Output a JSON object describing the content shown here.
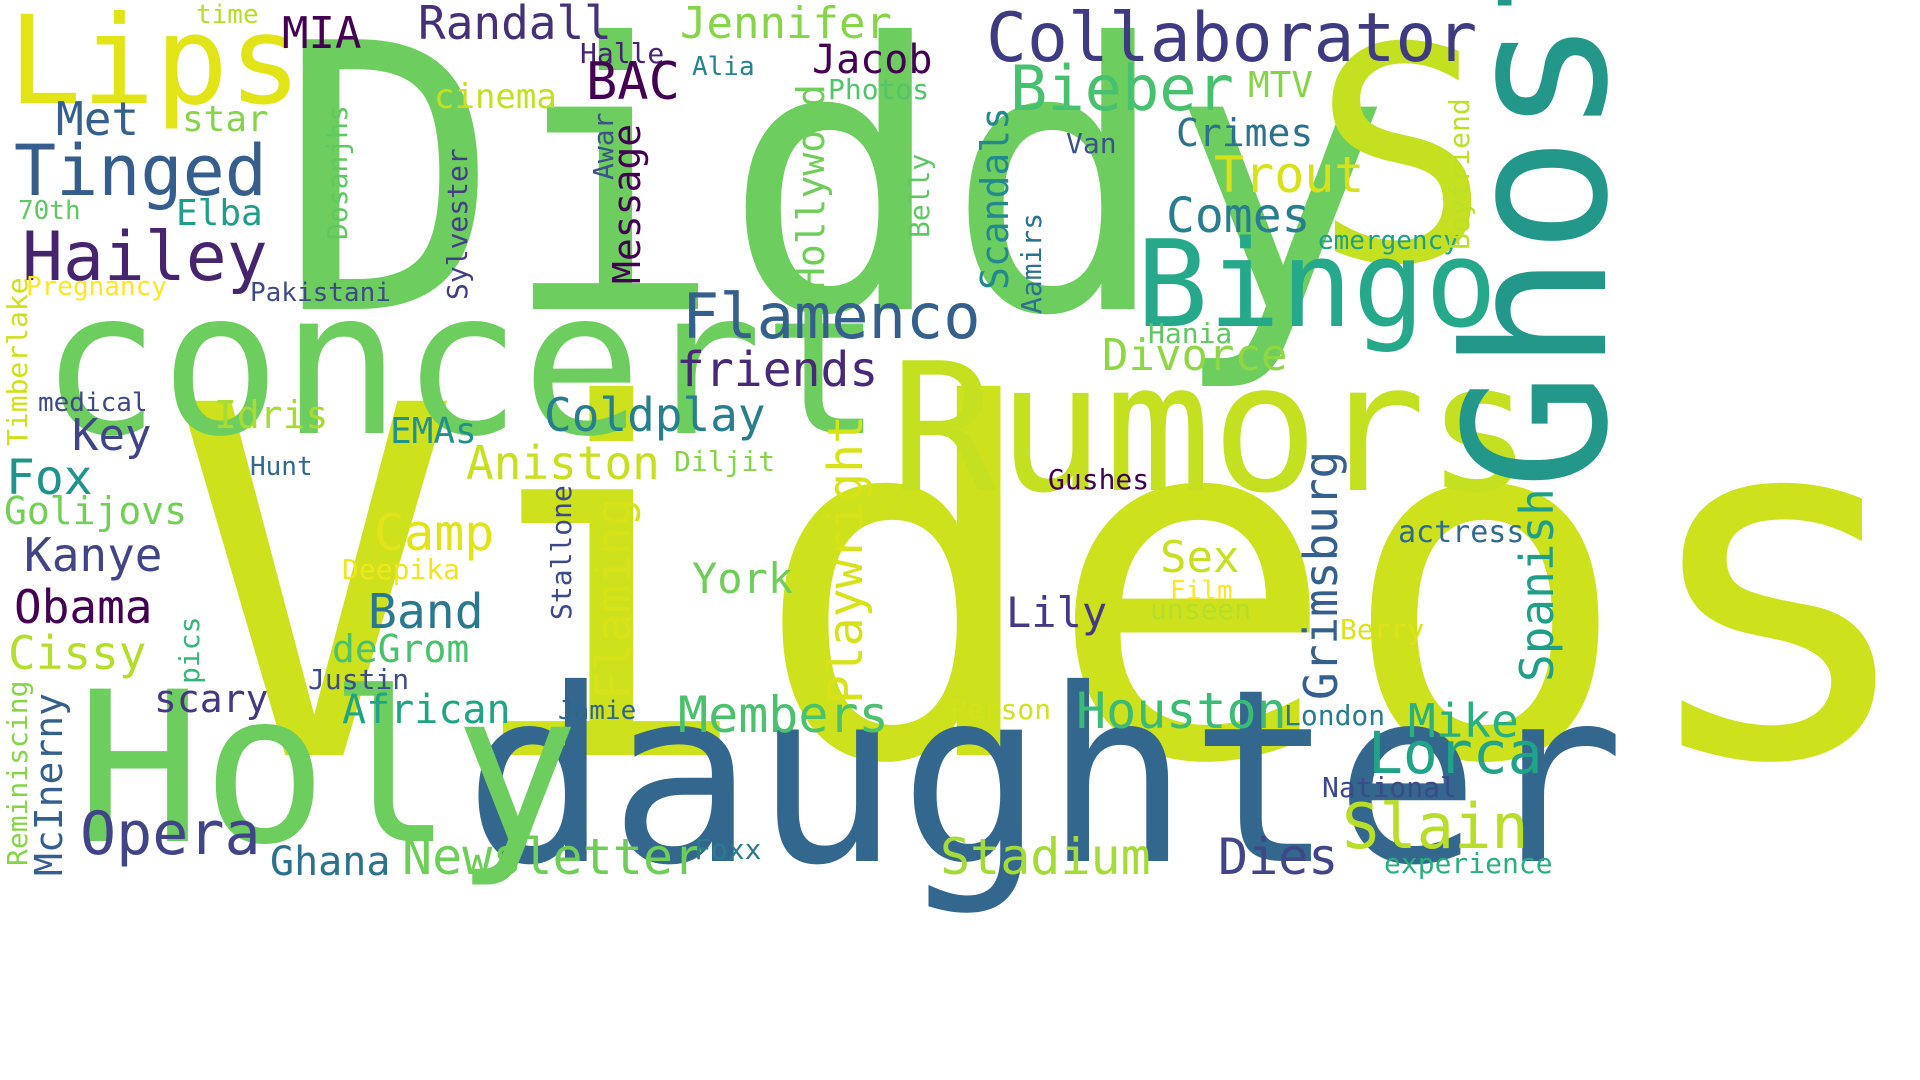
{
  "cloud": {
    "words": [
      {
        "text": "Diddy",
        "color": "#6ecd5f"
      },
      {
        "text": "Videos",
        "color": "#cde11d"
      },
      {
        "text": "daughter",
        "color": "#33678d"
      },
      {
        "text": "concert",
        "color": "#6ecd5f"
      },
      {
        "text": "Holy",
        "color": "#6ecd5f"
      },
      {
        "text": "Rumors",
        "color": "#c4e021"
      },
      {
        "text": "S",
        "color": "#c4e021"
      },
      {
        "text": "Ghost",
        "color": "#24978b"
      },
      {
        "text": "Bingo",
        "color": "#26a98a"
      },
      {
        "text": "Lips",
        "color": "#e2e418"
      },
      {
        "text": "Collaborator",
        "color": "#3f3b82"
      },
      {
        "text": "Tinged",
        "color": "#355e8d"
      },
      {
        "text": "Hailey",
        "color": "#46246e"
      },
      {
        "text": "Flamenco",
        "color": "#355f8d"
      },
      {
        "text": "Bieber",
        "color": "#47c06f"
      },
      {
        "text": "Randall",
        "color": "#46307a"
      },
      {
        "text": "Jennifer",
        "color": "#86d549"
      },
      {
        "text": "MIA",
        "color": "#440154"
      },
      {
        "text": "Met",
        "color": "#355f8d"
      },
      {
        "text": "star",
        "color": "#86d549"
      },
      {
        "text": "time",
        "color": "#b5de2b"
      },
      {
        "text": "Halle",
        "color": "#482173"
      },
      {
        "text": "Alia",
        "color": "#26828e"
      },
      {
        "text": "Jacob",
        "color": "#440154"
      },
      {
        "text": "BAC",
        "color": "#440154"
      },
      {
        "text": "cinema",
        "color": "#c6e020"
      },
      {
        "text": "Photos",
        "color": "#51c56a"
      },
      {
        "text": "MTV",
        "color": "#86d549"
      },
      {
        "text": "Van",
        "color": "#3b528b"
      },
      {
        "text": "Crimes",
        "color": "#2c728e"
      },
      {
        "text": "Trout",
        "color": "#d8e219"
      },
      {
        "text": "Comes",
        "color": "#287d8e"
      },
      {
        "text": "emergency",
        "color": "#1fa088"
      },
      {
        "text": "Elba",
        "color": "#1f9e89"
      },
      {
        "text": "70th",
        "color": "#5ec962"
      },
      {
        "text": "Pregnancy",
        "color": "#fde725"
      },
      {
        "text": "Pakistani",
        "color": "#3e4989"
      },
      {
        "text": "friends",
        "color": "#482878"
      },
      {
        "text": "Divorce",
        "color": "#8fd744"
      },
      {
        "text": "Hania",
        "color": "#5ec962"
      },
      {
        "text": "Coldplay",
        "color": "#277f8e"
      },
      {
        "text": "Idris",
        "color": "#a8db34"
      },
      {
        "text": "EMAs",
        "color": "#21918c"
      },
      {
        "text": "Key",
        "color": "#414487"
      },
      {
        "text": "medical",
        "color": "#3e4989"
      },
      {
        "text": "Hunt",
        "color": "#31688e"
      },
      {
        "text": "Fox",
        "color": "#1f948c"
      },
      {
        "text": "Golijovs",
        "color": "#73d056"
      },
      {
        "text": "Kanye",
        "color": "#414487"
      },
      {
        "text": "Obama",
        "color": "#440154"
      },
      {
        "text": "Cissy",
        "color": "#b5de2b"
      },
      {
        "text": "Aniston",
        "color": "#c8e020"
      },
      {
        "text": "Diljit",
        "color": "#86d549"
      },
      {
        "text": "Gushes",
        "color": "#440154"
      },
      {
        "text": "Camp",
        "color": "#e2e418"
      },
      {
        "text": "Deepika",
        "color": "#f1e51d"
      },
      {
        "text": "actress",
        "color": "#306a8e"
      },
      {
        "text": "Sex",
        "color": "#c8e020"
      },
      {
        "text": "Film",
        "color": "#fde725"
      },
      {
        "text": "York",
        "color": "#6ece58"
      },
      {
        "text": "Band",
        "color": "#2a788e"
      },
      {
        "text": "Lily",
        "color": "#443a83"
      },
      {
        "text": "unseen",
        "color": "#b5de2b"
      },
      {
        "text": "Berry",
        "color": "#dde318"
      },
      {
        "text": "deGrom",
        "color": "#4ac16d"
      },
      {
        "text": "Justin",
        "color": "#3e4c8a"
      },
      {
        "text": "scary",
        "color": "#453781"
      },
      {
        "text": "African",
        "color": "#20a486"
      },
      {
        "text": "Jamie",
        "color": "#32658e"
      },
      {
        "text": "Person",
        "color": "#d2e21b"
      },
      {
        "text": "Houston",
        "color": "#3bbb75"
      },
      {
        "text": "London",
        "color": "#287c8e"
      },
      {
        "text": "Mike",
        "color": "#2ab07f"
      },
      {
        "text": "Lorca",
        "color": "#20a386"
      },
      {
        "text": "Members",
        "color": "#4ac16d"
      },
      {
        "text": "National",
        "color": "#3e4989"
      },
      {
        "text": "Slain",
        "color": "#b8de29"
      },
      {
        "text": "Opera",
        "color": "#414487"
      },
      {
        "text": "Ghana",
        "color": "#2c718e"
      },
      {
        "text": "Newsletter",
        "color": "#6ece58"
      },
      {
        "text": "Foxx",
        "color": "#287c8e"
      },
      {
        "text": "Stadium",
        "color": "#a5db36"
      },
      {
        "text": "Dies",
        "color": "#404688"
      },
      {
        "text": "experience",
        "color": "#29af7f"
      },
      {
        "text": "Timberlake",
        "color": "#d0e11c"
      },
      {
        "text": "Reminiscing",
        "color": "#86d549"
      },
      {
        "text": "McInerny",
        "color": "#355f8d"
      },
      {
        "text": "pics",
        "color": "#35b779"
      },
      {
        "text": "Dosanjhs",
        "color": "#5ec962"
      },
      {
        "text": "Sylvester",
        "color": "#433e85"
      },
      {
        "text": "Awar",
        "color": "#3b528b"
      },
      {
        "text": "Message",
        "color": "#440154"
      },
      {
        "text": "Hollywood",
        "color": "#6ece58"
      },
      {
        "text": "Belly",
        "color": "#5ec962"
      },
      {
        "text": "Scandals",
        "color": "#23898e"
      },
      {
        "text": "Aamirs",
        "color": "#2c728e"
      },
      {
        "text": "Boyfriend",
        "color": "#bddf26"
      },
      {
        "text": "Stallone",
        "color": "#3e4989"
      },
      {
        "text": "Flaming",
        "color": "#d8e219"
      },
      {
        "text": "Playwright",
        "color": "#d8e219"
      },
      {
        "text": "Grimsburg",
        "color": "#355f8d"
      },
      {
        "text": "Spanish",
        "color": "#1f9f88"
      }
    ]
  }
}
